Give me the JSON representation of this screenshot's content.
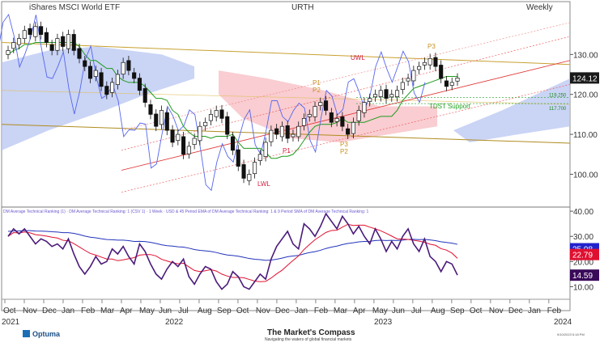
{
  "header": {
    "left": "iShares MSCI World ETF",
    "center": "URTH",
    "right": "Weekly"
  },
  "footer": {
    "brand": "Optuma",
    "title": "The Market's Compass",
    "tagline": "Navigating the waters of global financial markets",
    "timestamp": "9/10/2023 5:18 PM"
  },
  "indicator_legend": "DM Average Technical Ranking (1) · DM Average Technical Ranking: 1 (CSV 1) · 1 Week · USD & 45 Period EMA of DM Average Technical Ranking: 1 & 9 Period SMA of DM Average Technical Ranking: 1",
  "colors": {
    "price_axis_tag": "#1a1a1a",
    "ema_tag": "#2222cc",
    "sma_tag": "#e01030",
    "raw_tag": "#3a0a5a",
    "cloud_bull": "#b8c6f2",
    "cloud_bear": "#f7c0c6",
    "conv_line": "#1e9a1e"
  },
  "chart_data": [
    {
      "type": "candlestick",
      "title": "URTH",
      "xlabel": "",
      "ylabel": "",
      "ylim": [
        93,
        140
      ],
      "x_tick_labels": [
        "Oct",
        "Nov",
        "Dec",
        "Jan",
        "Feb",
        "Mar",
        "Apr",
        "May",
        "Jun",
        "Jul",
        "Aug",
        "Sep",
        "Oct",
        "Nov",
        "Dec",
        "Jan",
        "Feb",
        "Mar",
        "Apr",
        "May",
        "Jun",
        "Jul",
        "Aug",
        "Sep",
        "Oct",
        "Nov",
        "Dec",
        "Jan",
        "Feb"
      ],
      "year_labels": [
        "2021",
        "2022",
        "2023",
        "2024"
      ],
      "y_ticks": [
        100,
        110,
        120,
        130
      ],
      "last_price": "124.12",
      "levels": [
        {
          "label": "119.250",
          "value": 119.25
        },
        {
          "label": "117.700",
          "value": 117.7
        }
      ],
      "annotations": [
        "UWL",
        "LWL",
        "P1",
        "P2",
        "P3",
        "P1",
        "P2",
        "P3",
        "P2",
        "P3",
        "TDST Support"
      ],
      "weekly_close": [
        131,
        133,
        134,
        136,
        135,
        137,
        135,
        133,
        131,
        134,
        132,
        135,
        131,
        129,
        127,
        124,
        126,
        122,
        120,
        123,
        125,
        128,
        126,
        124,
        121,
        118,
        115,
        112,
        116,
        111,
        108,
        110,
        105,
        107,
        109,
        112,
        113,
        115,
        116,
        114,
        110,
        106,
        102,
        99,
        100,
        103,
        105,
        108,
        111,
        110,
        112,
        109,
        110,
        112,
        114,
        115,
        117,
        118,
        116,
        113,
        114,
        112,
        110,
        113,
        116,
        118,
        119,
        120,
        121,
        119,
        120,
        121,
        123,
        124,
        126,
        127,
        128,
        129,
        127,
        124,
        122,
        123,
        124.12
      ],
      "rankings": {
        "names": [
          "DM Average Technical Ranking",
          "45 Period EMA",
          "9 Period SMA"
        ],
        "ylim": [
          5,
          41
        ],
        "y_ticks": [
          10,
          20,
          30,
          40
        ],
        "last": {
          "ema": "25.08",
          "sma": "22.79",
          "raw": "14.59"
        },
        "raw": [
          30,
          33,
          31,
          33,
          30,
          27,
          29,
          28,
          26,
          27,
          25,
          29,
          23,
          18,
          15,
          18,
          22,
          19,
          20,
          25,
          23,
          26,
          22,
          19,
          27,
          24,
          19,
          15,
          13,
          17,
          20,
          18,
          21,
          14,
          11,
          15,
          18,
          17,
          12,
          9,
          11,
          16,
          14,
          10,
          9,
          12,
          15,
          13,
          21,
          26,
          29,
          32,
          27,
          25,
          35,
          33,
          30,
          34,
          39,
          36,
          33,
          38,
          35,
          31,
          34,
          30,
          27,
          33,
          29,
          24,
          28,
          25,
          30,
          33,
          27,
          24,
          29,
          22,
          20,
          16,
          20,
          19,
          14.59
        ]
      }
    }
  ]
}
